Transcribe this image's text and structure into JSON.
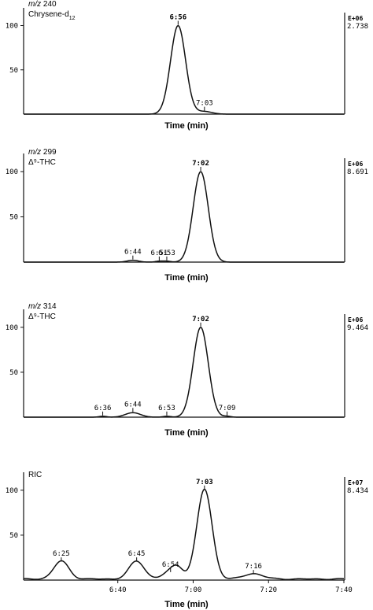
{
  "chart_data": [
    {
      "type": "line",
      "title": "m/z 240",
      "compound_prefix": "Chrysene-d",
      "compound_subscript": "12",
      "xlabel": "Time (min)",
      "ylabel": "",
      "xlim": [
        "6:15",
        "7:40"
      ],
      "ylim": [
        0,
        120
      ],
      "yticks": [
        50,
        100
      ],
      "scale_exponent": "E+06",
      "scale_value": "2.738",
      "peaks": [
        {
          "time": "6:56",
          "label": "6:56",
          "height": 100,
          "width": 2.0
        },
        {
          "time": "7:03",
          "label": "7:03",
          "height": 3,
          "width": 2.0
        }
      ]
    },
    {
      "type": "line",
      "title": "m/z 299",
      "compound_prefix": "Δ⁹-THC",
      "compound_subscript": "",
      "xlabel": "Time (min)",
      "ylabel": "",
      "xlim": [
        "6:15",
        "7:40"
      ],
      "ylim": [
        0,
        120
      ],
      "yticks": [
        50,
        100
      ],
      "scale_exponent": "E+06",
      "scale_value": "8.691",
      "peaks": [
        {
          "time": "6:44",
          "label": "6:44",
          "height": 2,
          "width": 1.5
        },
        {
          "time": "6:51",
          "label": "6:51",
          "height": 1,
          "width": 1.0
        },
        {
          "time": "6:53",
          "label": "6:53",
          "height": 1,
          "width": 1.0
        },
        {
          "time": "7:02",
          "label": "7:02",
          "height": 100,
          "width": 2.0
        }
      ]
    },
    {
      "type": "line",
      "title": "m/z 314",
      "compound_prefix": "Δ⁹-THC",
      "compound_subscript": "",
      "xlabel": "Time (min)",
      "ylabel": "",
      "xlim": [
        "6:15",
        "7:40"
      ],
      "ylim": [
        0,
        120
      ],
      "yticks": [
        50,
        100
      ],
      "scale_exponent": "E+06",
      "scale_value": "9.464",
      "peaks": [
        {
          "time": "6:36",
          "label": "6:36",
          "height": 1,
          "width": 1.0
        },
        {
          "time": "6:44",
          "label": "6:44",
          "height": 5,
          "width": 2.0
        },
        {
          "time": "6:53",
          "label": "6:53",
          "height": 1,
          "width": 1.0
        },
        {
          "time": "7:02",
          "label": "7:02",
          "height": 100,
          "width": 2.0
        },
        {
          "time": "7:09",
          "label": "7:09",
          "height": 1,
          "width": 1.0
        }
      ]
    },
    {
      "type": "line",
      "title": "RIC",
      "compound_prefix": "",
      "compound_subscript": "",
      "xlabel": "Time (min)",
      "ylabel": "",
      "xlim": [
        "6:15",
        "7:40"
      ],
      "ylim": [
        0,
        120
      ],
      "yticks": [
        50,
        100
      ],
      "xticks": [
        "6:40",
        "7:00",
        "7:20",
        "7:40"
      ],
      "scale_exponent": "E+07",
      "scale_value": "8.434",
      "peaks": [
        {
          "time": "6:25",
          "label": "6:25",
          "height": 20,
          "width": 2.0
        },
        {
          "time": "6:45",
          "label": "6:45",
          "height": 20,
          "width": 2.0
        },
        {
          "time": "6:54",
          "label": "6:54",
          "height": 8,
          "width": 2.0
        },
        {
          "time": "6:56",
          "label": "",
          "height": 10,
          "width": 1.5
        },
        {
          "time": "7:03",
          "label": "7:03",
          "height": 100,
          "width": 2.0
        },
        {
          "time": "7:16",
          "label": "7:16",
          "height": 6,
          "width": 2.5
        }
      ]
    }
  ]
}
